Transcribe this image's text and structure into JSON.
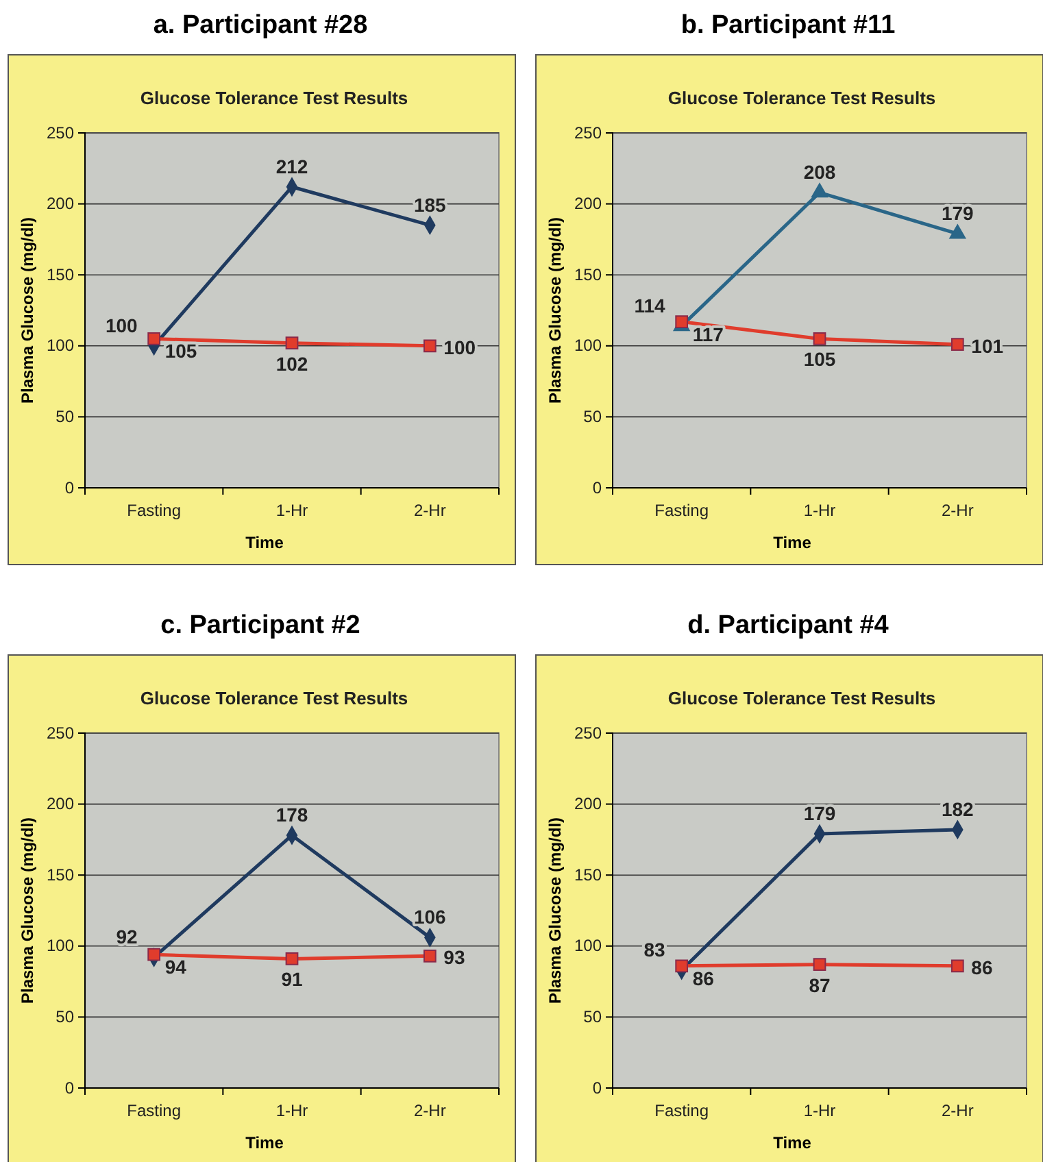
{
  "chart_data": [
    {
      "type": "line",
      "title": "a. Participant #28",
      "subtitle": "Glucose Tolerance Test Results",
      "xlabel": "Time",
      "ylabel": "Plasma Glucose (mg/dl)",
      "categories": [
        "Fasting",
        "1-Hr",
        "2-Hr"
      ],
      "ylim": [
        0,
        250
      ],
      "yticks": [
        0,
        50,
        100,
        150,
        200,
        250
      ],
      "grid": "y",
      "data_labels": true,
      "line_style": "solid",
      "series": [
        {
          "color": "#1f3a5f",
          "marker": "diamond",
          "values": [
            100,
            212,
            185
          ]
        },
        {
          "color": "#e03c2c",
          "marker": "square",
          "values": [
            105,
            102,
            100
          ]
        }
      ]
    },
    {
      "type": "line",
      "title": "b.  Participant #11",
      "subtitle": "Glucose Tolerance Test Results",
      "xlabel": "Time",
      "ylabel": "Plasma Glucose (mg/dl)",
      "categories": [
        "Fasting",
        "1-Hr",
        "2-Hr"
      ],
      "ylim": [
        0,
        250
      ],
      "yticks": [
        0,
        50,
        100,
        150,
        200,
        250
      ],
      "grid": "y",
      "data_labels": true,
      "line_style": "solid",
      "series": [
        {
          "color": "#2a6688",
          "marker": "triangle",
          "values": [
            114,
            208,
            179
          ]
        },
        {
          "color": "#e03c2c",
          "marker": "square",
          "values": [
            117,
            105,
            101
          ]
        }
      ]
    },
    {
      "type": "line",
      "title": "c. Participant #2",
      "subtitle": "Glucose Tolerance Test Results",
      "xlabel": "Time",
      "ylabel": "Plasma Glucose (mg/dl)",
      "categories": [
        "Fasting",
        "1-Hr",
        "2-Hr"
      ],
      "ylim": [
        0,
        250
      ],
      "yticks": [
        0,
        50,
        100,
        150,
        200,
        250
      ],
      "grid": "y",
      "data_labels": true,
      "line_style": "solid",
      "series": [
        {
          "color": "#1f3a5f",
          "marker": "diamond",
          "values": [
            92,
            178,
            106
          ]
        },
        {
          "color": "#e03c2c",
          "marker": "square",
          "values": [
            94,
            91,
            93
          ]
        }
      ]
    },
    {
      "type": "line",
      "title": "d. Participant #4",
      "subtitle": "Glucose Tolerance Test Results",
      "xlabel": "Time",
      "ylabel": "Plasma Glucose (mg/dl)",
      "categories": [
        "Fasting",
        "1-Hr",
        "2-Hr"
      ],
      "ylim": [
        0,
        250
      ],
      "yticks": [
        0,
        50,
        100,
        150,
        200,
        250
      ],
      "grid": "y",
      "data_labels": true,
      "line_style": "solid",
      "series": [
        {
          "color": "#1f3a5f",
          "marker": "diamond",
          "values": [
            83,
            179,
            182
          ]
        },
        {
          "color": "#e03c2c",
          "marker": "square",
          "values": [
            86,
            87,
            86
          ]
        }
      ]
    }
  ]
}
